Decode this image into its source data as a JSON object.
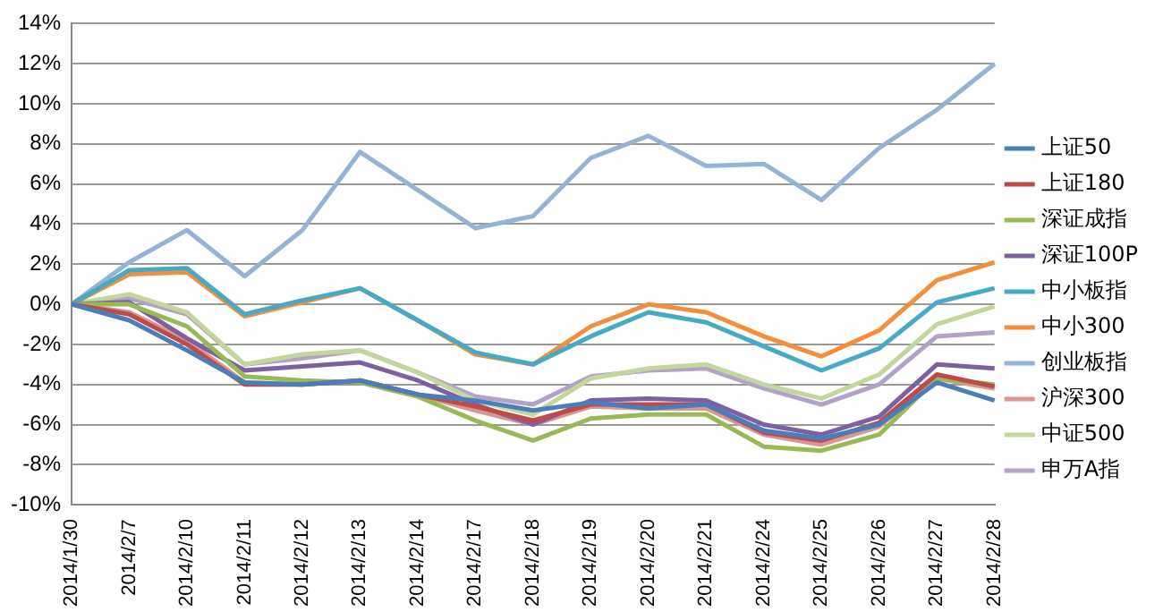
{
  "chart_data": {
    "type": "line",
    "categories": [
      "2014/1/30",
      "2014/2/7",
      "2014/2/10",
      "2014/2/11",
      "2014/2/12",
      "2014/2/13",
      "2014/2/14",
      "2014/2/17",
      "2014/2/18",
      "2014/2/19",
      "2014/2/20",
      "2014/2/21",
      "2014/2/24",
      "2014/2/25",
      "2014/2/26",
      "2014/2/27",
      "2014/2/28"
    ],
    "series": [
      {
        "name": "上证50",
        "color": "#4a7ebb",
        "values": [
          0,
          -0.8,
          -2.3,
          -3.9,
          -4.0,
          -3.8,
          -4.5,
          -4.8,
          -5.3,
          -4.9,
          -5.2,
          -5.0,
          -6.3,
          -6.7,
          -6.0,
          -3.9,
          -4.8
        ]
      },
      {
        "name": "上证180",
        "color": "#be4b48",
        "values": [
          0,
          -0.5,
          -2.0,
          -4.0,
          -4.0,
          -3.8,
          -4.5,
          -5.1,
          -5.8,
          -5.0,
          -5.0,
          -5.0,
          -6.4,
          -6.8,
          -5.9,
          -3.5,
          -4.1
        ]
      },
      {
        "name": "深证成指",
        "color": "#98b954",
        "values": [
          0,
          0,
          -1.1,
          -3.6,
          -3.8,
          -3.9,
          -4.6,
          -5.8,
          -6.8,
          -5.7,
          -5.5,
          -5.5,
          -7.1,
          -7.3,
          -6.5,
          -3.7,
          -4.0
        ]
      },
      {
        "name": "深证100P",
        "color": "#7d60a0",
        "values": [
          0,
          0.1,
          -1.7,
          -3.3,
          -3.1,
          -2.9,
          -3.8,
          -5.0,
          -6.0,
          -4.8,
          -4.7,
          -4.8,
          -6.0,
          -6.5,
          -5.6,
          -3.0,
          -3.2
        ]
      },
      {
        "name": "中小板指",
        "color": "#46aac5",
        "values": [
          0,
          1.7,
          1.8,
          -0.5,
          0.2,
          0.8,
          -0.8,
          -2.4,
          -3.0,
          -1.6,
          -0.4,
          -0.9,
          -2.1,
          -3.3,
          -2.2,
          0.1,
          0.8
        ]
      },
      {
        "name": "中小300",
        "color": "#f38f3c",
        "values": [
          0,
          1.5,
          1.6,
          -0.6,
          0.1,
          0.8,
          -0.8,
          -2.5,
          -3.0,
          -1.1,
          0.0,
          -0.4,
          -1.6,
          -2.6,
          -1.3,
          1.2,
          2.1
        ]
      },
      {
        "name": "创业板指",
        "color": "#95b3d7",
        "values": [
          0,
          2.1,
          3.7,
          1.4,
          3.7,
          7.6,
          5.7,
          3.8,
          4.4,
          7.3,
          8.4,
          6.9,
          7.0,
          5.2,
          7.8,
          9.7,
          12.0
        ]
      },
      {
        "name": "沪深300",
        "color": "#d99694",
        "values": [
          0,
          -0.4,
          -1.8,
          -3.9,
          -4.0,
          -3.8,
          -4.5,
          -5.3,
          -6.0,
          -5.1,
          -5.2,
          -5.2,
          -6.5,
          -7.0,
          -6.1,
          -3.7,
          -4.2
        ]
      },
      {
        "name": "中证500",
        "color": "#c3d69b",
        "values": [
          0,
          0.5,
          -0.4,
          -3.0,
          -2.5,
          -2.3,
          -3.4,
          -4.8,
          -5.5,
          -3.7,
          -3.2,
          -3.0,
          -4.0,
          -4.7,
          -3.5,
          -1.0,
          -0.1
        ]
      },
      {
        "name": "申万A指",
        "color": "#b3a2c7",
        "values": [
          0,
          0.3,
          -0.5,
          -3.0,
          -2.7,
          -2.3,
          -3.4,
          -4.6,
          -5.0,
          -3.6,
          -3.3,
          -3.2,
          -4.2,
          -5.0,
          -4.0,
          -1.6,
          -1.4
        ]
      }
    ],
    "ylim": [
      -10,
      14
    ],
    "yticks": [
      {
        "value": -10,
        "label": "-10%"
      },
      {
        "value": -8,
        "label": "-8%"
      },
      {
        "value": -6,
        "label": "-6%"
      },
      {
        "value": -4,
        "label": "-4%"
      },
      {
        "value": -2,
        "label": "-2%"
      },
      {
        "value": 0,
        "label": "0%"
      },
      {
        "value": 2,
        "label": "2%"
      },
      {
        "value": 4,
        "label": "4%"
      },
      {
        "value": 6,
        "label": "6%"
      },
      {
        "value": 8,
        "label": "8%"
      },
      {
        "value": 10,
        "label": "10%"
      },
      {
        "value": 12,
        "label": "12%"
      },
      {
        "value": 14,
        "label": "14%"
      }
    ],
    "grid": "y",
    "legend": "right",
    "marker": "none",
    "line_style": "solid"
  }
}
